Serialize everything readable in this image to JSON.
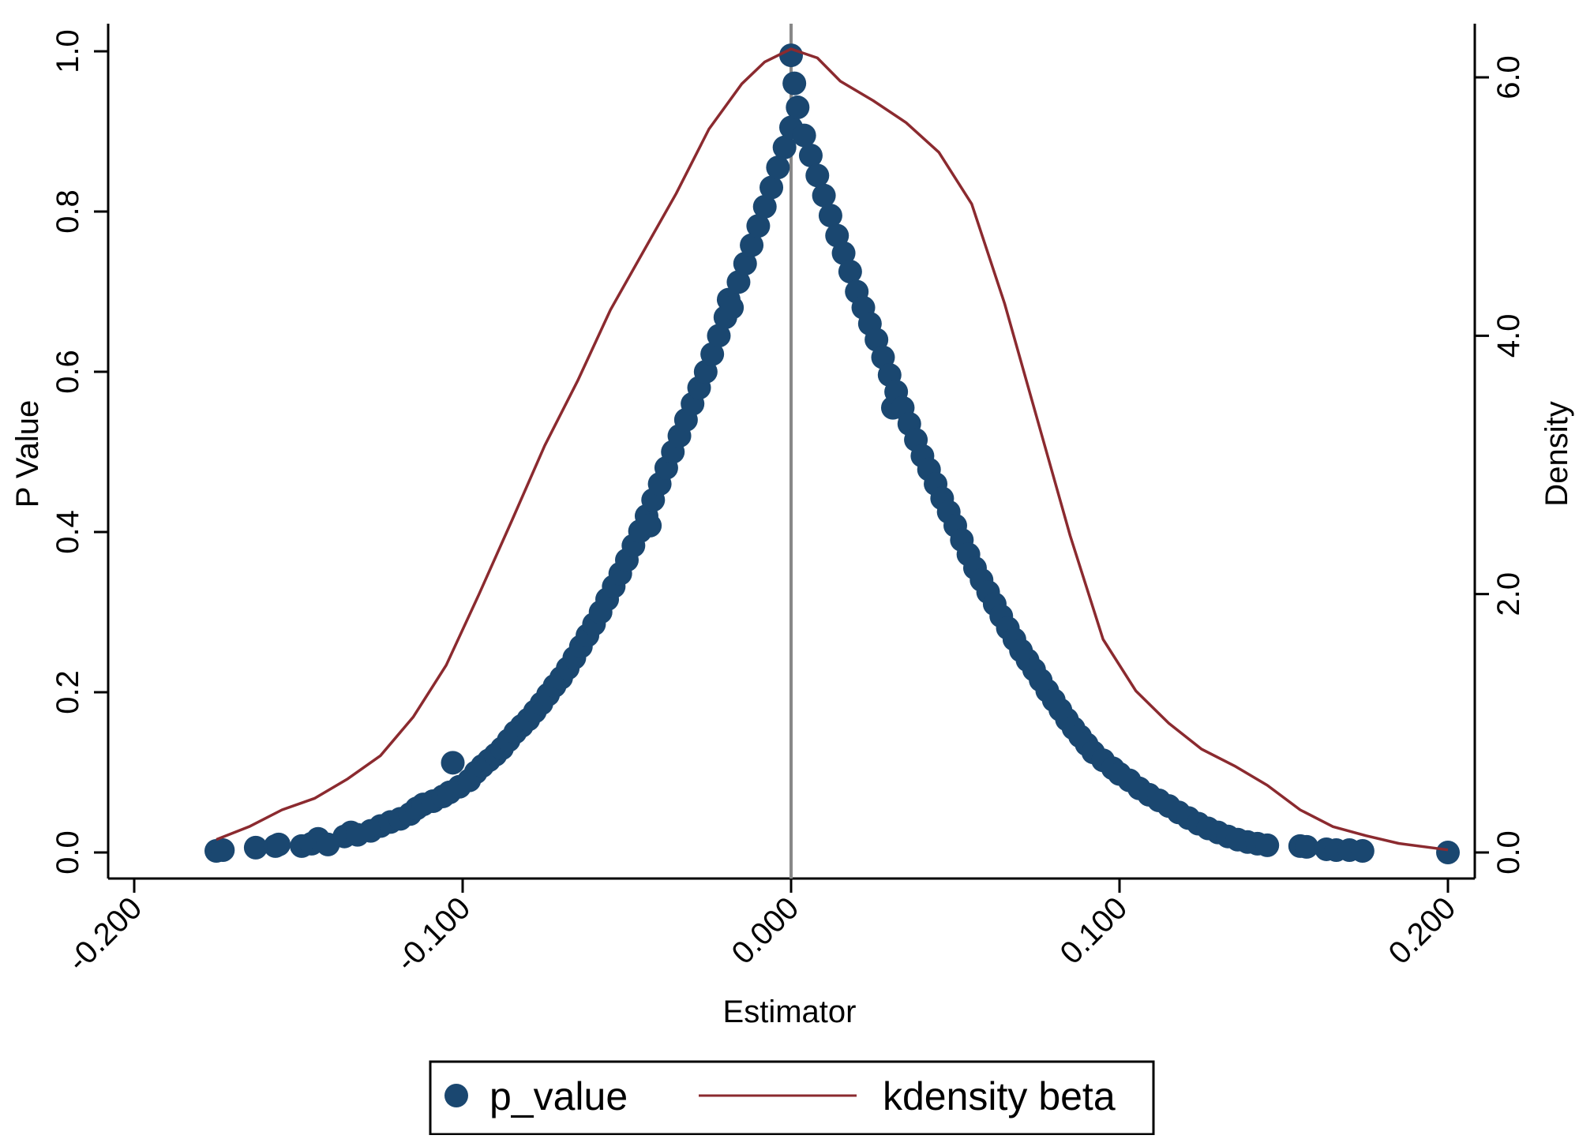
{
  "chart_data": {
    "type": "scatter",
    "title": "",
    "xlabel": "Estimator",
    "ylabel": "P Value",
    "y2label": "Density",
    "xlim": [
      -0.2,
      0.2
    ],
    "ylim": [
      0,
      1
    ],
    "y2lim": [
      0,
      6
    ],
    "xticks": [
      "-0.200",
      "-0.100",
      "0.000",
      "0.100",
      "0.200"
    ],
    "yticks": [
      "0.0",
      "0.2",
      "0.4",
      "0.6",
      "0.8",
      "1.0"
    ],
    "y2ticks": [
      "0.0",
      "2.0",
      "4.0",
      "6.0"
    ],
    "reference_line_x": 0,
    "grid": false,
    "legend_position": "bottom",
    "colors": {
      "p_value": "#1a4770",
      "kdensity": "#8b2a2f",
      "reference_line": "#888888",
      "axis": "#000000"
    },
    "series": [
      {
        "name": "p_value",
        "type": "scatter",
        "points": [
          [
            -0.175,
            0.002
          ],
          [
            -0.173,
            0.003
          ],
          [
            -0.163,
            0.006
          ],
          [
            -0.157,
            0.008
          ],
          [
            -0.156,
            0.01
          ],
          [
            -0.149,
            0.008
          ],
          [
            -0.146,
            0.011
          ],
          [
            -0.144,
            0.017
          ],
          [
            -0.141,
            0.01
          ],
          [
            -0.136,
            0.02
          ],
          [
            -0.134,
            0.025
          ],
          [
            -0.132,
            0.022
          ],
          [
            -0.128,
            0.027
          ],
          [
            -0.125,
            0.033
          ],
          [
            -0.122,
            0.038
          ],
          [
            -0.119,
            0.042
          ],
          [
            -0.116,
            0.048
          ],
          [
            -0.114,
            0.055
          ],
          [
            -0.112,
            0.06
          ],
          [
            -0.109,
            0.064
          ],
          [
            -0.106,
            0.07
          ],
          [
            -0.104,
            0.075
          ],
          [
            -0.103,
            0.112
          ],
          [
            -0.101,
            0.082
          ],
          [
            -0.098,
            0.09
          ],
          [
            -0.096,
            0.1
          ],
          [
            -0.094,
            0.108
          ],
          [
            -0.092,
            0.115
          ],
          [
            -0.09,
            0.122
          ],
          [
            -0.088,
            0.13
          ],
          [
            -0.086,
            0.14
          ],
          [
            -0.084,
            0.15
          ],
          [
            -0.082,
            0.158
          ],
          [
            -0.08,
            0.166
          ],
          [
            -0.078,
            0.176
          ],
          [
            -0.076,
            0.186
          ],
          [
            -0.074,
            0.197
          ],
          [
            -0.072,
            0.208
          ],
          [
            -0.07,
            0.218
          ],
          [
            -0.068,
            0.23
          ],
          [
            -0.066,
            0.243
          ],
          [
            -0.064,
            0.257
          ],
          [
            -0.062,
            0.271
          ],
          [
            -0.06,
            0.285
          ],
          [
            -0.058,
            0.3
          ],
          [
            -0.056,
            0.316
          ],
          [
            -0.054,
            0.332
          ],
          [
            -0.052,
            0.348
          ],
          [
            -0.05,
            0.365
          ],
          [
            -0.048,
            0.383
          ],
          [
            -0.046,
            0.401
          ],
          [
            -0.044,
            0.42
          ],
          [
            -0.043,
            0.408
          ],
          [
            -0.042,
            0.44
          ],
          [
            -0.04,
            0.46
          ],
          [
            -0.038,
            0.48
          ],
          [
            -0.036,
            0.5
          ],
          [
            -0.034,
            0.52
          ],
          [
            -0.032,
            0.54
          ],
          [
            -0.03,
            0.56
          ],
          [
            -0.028,
            0.58
          ],
          [
            -0.026,
            0.6
          ],
          [
            -0.024,
            0.622
          ],
          [
            -0.022,
            0.645
          ],
          [
            -0.02,
            0.668
          ],
          [
            -0.019,
            0.69
          ],
          [
            -0.018,
            0.68
          ],
          [
            -0.016,
            0.712
          ],
          [
            -0.014,
            0.735
          ],
          [
            -0.012,
            0.758
          ],
          [
            -0.01,
            0.782
          ],
          [
            -0.008,
            0.806
          ],
          [
            -0.006,
            0.83
          ],
          [
            -0.004,
            0.855
          ],
          [
            -0.002,
            0.88
          ],
          [
            0.0,
            0.905
          ],
          [
            0.0,
            0.995
          ],
          [
            0.001,
            0.96
          ],
          [
            0.002,
            0.93
          ],
          [
            0.004,
            0.895
          ],
          [
            0.006,
            0.87
          ],
          [
            0.008,
            0.845
          ],
          [
            0.01,
            0.82
          ],
          [
            0.012,
            0.795
          ],
          [
            0.014,
            0.77
          ],
          [
            0.016,
            0.748
          ],
          [
            0.018,
            0.725
          ],
          [
            0.02,
            0.7
          ],
          [
            0.022,
            0.68
          ],
          [
            0.024,
            0.66
          ],
          [
            0.026,
            0.64
          ],
          [
            0.028,
            0.618
          ],
          [
            0.03,
            0.596
          ],
          [
            0.031,
            0.555
          ],
          [
            0.032,
            0.575
          ],
          [
            0.034,
            0.555
          ],
          [
            0.036,
            0.535
          ],
          [
            0.038,
            0.515
          ],
          [
            0.04,
            0.495
          ],
          [
            0.042,
            0.478
          ],
          [
            0.044,
            0.46
          ],
          [
            0.046,
            0.442
          ],
          [
            0.048,
            0.425
          ],
          [
            0.05,
            0.408
          ],
          [
            0.052,
            0.39
          ],
          [
            0.054,
            0.372
          ],
          [
            0.056,
            0.355
          ],
          [
            0.058,
            0.34
          ],
          [
            0.06,
            0.325
          ],
          [
            0.062,
            0.31
          ],
          [
            0.064,
            0.295
          ],
          [
            0.066,
            0.28
          ],
          [
            0.068,
            0.266
          ],
          [
            0.07,
            0.252
          ],
          [
            0.072,
            0.24
          ],
          [
            0.074,
            0.228
          ],
          [
            0.076,
            0.215
          ],
          [
            0.078,
            0.202
          ],
          [
            0.08,
            0.19
          ],
          [
            0.082,
            0.178
          ],
          [
            0.084,
            0.166
          ],
          [
            0.086,
            0.155
          ],
          [
            0.088,
            0.145
          ],
          [
            0.09,
            0.135
          ],
          [
            0.092,
            0.125
          ],
          [
            0.095,
            0.115
          ],
          [
            0.098,
            0.105
          ],
          [
            0.1,
            0.098
          ],
          [
            0.103,
            0.09
          ],
          [
            0.106,
            0.08
          ],
          [
            0.109,
            0.072
          ],
          [
            0.112,
            0.065
          ],
          [
            0.115,
            0.058
          ],
          [
            0.118,
            0.05
          ],
          [
            0.121,
            0.043
          ],
          [
            0.124,
            0.036
          ],
          [
            0.127,
            0.03
          ],
          [
            0.13,
            0.025
          ],
          [
            0.133,
            0.02
          ],
          [
            0.136,
            0.016
          ],
          [
            0.139,
            0.013
          ],
          [
            0.142,
            0.011
          ],
          [
            0.145,
            0.009
          ],
          [
            0.155,
            0.008
          ],
          [
            0.157,
            0.007
          ],
          [
            0.163,
            0.004
          ],
          [
            0.166,
            0.003
          ],
          [
            0.17,
            0.003
          ],
          [
            0.174,
            0.002
          ],
          [
            0.2,
            0.0
          ]
        ]
      },
      {
        "name": "kdensity beta",
        "type": "line",
        "axis": "right",
        "points": [
          [
            -0.175,
            0.1
          ],
          [
            -0.165,
            0.2
          ],
          [
            -0.155,
            0.33
          ],
          [
            -0.145,
            0.42
          ],
          [
            -0.135,
            0.57
          ],
          [
            -0.125,
            0.75
          ],
          [
            -0.115,
            1.05
          ],
          [
            -0.105,
            1.45
          ],
          [
            -0.095,
            2.0
          ],
          [
            -0.085,
            2.57
          ],
          [
            -0.075,
            3.15
          ],
          [
            -0.065,
            3.65
          ],
          [
            -0.055,
            4.2
          ],
          [
            -0.045,
            4.65
          ],
          [
            -0.035,
            5.1
          ],
          [
            -0.025,
            5.6
          ],
          [
            -0.015,
            5.95
          ],
          [
            -0.008,
            6.12
          ],
          [
            0.0,
            6.22
          ],
          [
            0.008,
            6.15
          ],
          [
            0.015,
            5.97
          ],
          [
            0.025,
            5.82
          ],
          [
            0.035,
            5.65
          ],
          [
            0.045,
            5.42
          ],
          [
            0.055,
            5.02
          ],
          [
            0.065,
            4.25
          ],
          [
            0.075,
            3.35
          ],
          [
            0.085,
            2.45
          ],
          [
            0.095,
            1.65
          ],
          [
            0.105,
            1.25
          ],
          [
            0.115,
            1.0
          ],
          [
            0.125,
            0.8
          ],
          [
            0.135,
            0.67
          ],
          [
            0.145,
            0.52
          ],
          [
            0.155,
            0.33
          ],
          [
            0.165,
            0.2
          ],
          [
            0.175,
            0.13
          ],
          [
            0.185,
            0.07
          ],
          [
            0.2,
            0.02
          ]
        ]
      }
    ]
  },
  "legend": {
    "items": [
      {
        "label": "p_value"
      },
      {
        "label": "kdensity beta"
      }
    ]
  }
}
